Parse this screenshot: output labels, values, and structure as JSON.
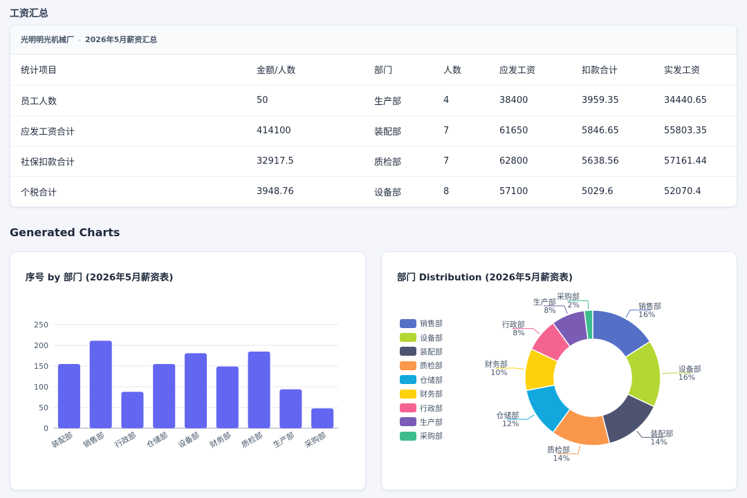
{
  "page": {
    "section_title": "工资汇总",
    "charts_title": "Generated Charts"
  },
  "table": {
    "company": "光明明光机械厂",
    "separator": "-",
    "caption": "2026年5月薪资汇总",
    "headers": [
      "统计项目",
      "金额/人数",
      "部门",
      "人数",
      "应发工资",
      "扣款合计",
      "实发工资"
    ],
    "rows": [
      [
        "员工人数",
        "50",
        "生产部",
        "4",
        "38400",
        "3959.35",
        "34440.65"
      ],
      [
        "应发工资合计",
        "414100",
        "装配部",
        "7",
        "61650",
        "5846.65",
        "55803.35"
      ],
      [
        "社保扣款合计",
        "32917.5",
        "质检部",
        "7",
        "62800",
        "5638.56",
        "57161.44"
      ],
      [
        "个税合计",
        "3948.76",
        "设备部",
        "8",
        "57100",
        "5029.6",
        "52070.4"
      ]
    ]
  },
  "chart_data": [
    {
      "type": "bar",
      "title": "序号 by 部门 (2026年5月薪资表)",
      "categories": [
        "装配部",
        "销售部",
        "行政部",
        "仓储部",
        "设备部",
        "财务部",
        "质检部",
        "生产部",
        "采购部"
      ],
      "values": [
        155,
        211,
        88,
        155,
        181,
        149,
        185,
        94,
        48
      ],
      "ylim": [
        0,
        250
      ],
      "yticks": [
        0,
        50,
        100,
        150,
        200,
        250
      ],
      "grid": true,
      "color": "#6366f1"
    },
    {
      "type": "pie",
      "style": "donut",
      "title": "部门 Distribution (2026年5月薪资表)",
      "legend": "left",
      "slices": [
        {
          "label": "销售部",
          "value": 16,
          "display": "16%",
          "color": "#5470c6"
        },
        {
          "label": "设备部",
          "value": 16,
          "display": "16%",
          "color": "#b5d733"
        },
        {
          "label": "装配部",
          "value": 14,
          "display": "14%",
          "color": "#4e5370"
        },
        {
          "label": "质检部",
          "value": 14,
          "display": "14%",
          "color": "#fb974b"
        },
        {
          "label": "仓储部",
          "value": 12,
          "display": "12%",
          "color": "#12a8de"
        },
        {
          "label": "财务部",
          "value": 10,
          "display": "10%",
          "color": "#fdd10b"
        },
        {
          "label": "行政部",
          "value": 8,
          "display": "8%",
          "color": "#f56391"
        },
        {
          "label": "生产部",
          "value": 8,
          "display": "8%",
          "color": "#7a5cb5"
        },
        {
          "label": "采购部",
          "value": 2,
          "display": "2%",
          "color": "#3dbd8e"
        }
      ]
    }
  ]
}
